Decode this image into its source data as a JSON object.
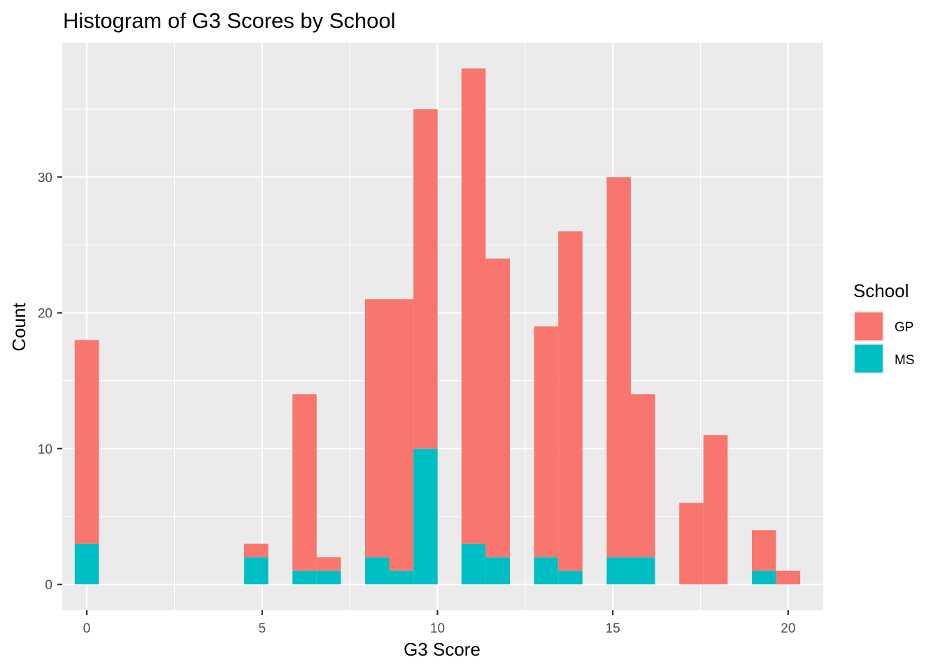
{
  "chart_data": {
    "type": "bar",
    "subtype": "stacked-histogram",
    "title": "Histogram of G3 Scores by School",
    "xlabel": "G3 Score",
    "ylabel": "Count",
    "xlim": [
      -0.7,
      21.0
    ],
    "ylim": [
      -1.9,
      39.9
    ],
    "bin_width": 0.6897,
    "x_ticks": [
      0,
      5,
      10,
      15,
      20
    ],
    "y_ticks": [
      0,
      10,
      20,
      30
    ],
    "x_tick_labels": [
      "0",
      "5",
      "10",
      "15",
      "20"
    ],
    "y_tick_labels": [
      "0",
      "10",
      "20",
      "30"
    ],
    "grid": true,
    "legend": {
      "title": "School",
      "position": "right"
    },
    "series": [
      {
        "name": "MS",
        "color": "#00BFC4",
        "x": [
          0,
          4.83,
          6.21,
          6.9,
          8.28,
          8.97,
          9.66,
          11.03,
          11.72,
          13.1,
          13.79,
          15.17,
          15.86,
          17.24,
          17.93,
          19.31,
          20.0
        ],
        "values": [
          3,
          2,
          1,
          1,
          2,
          1,
          10,
          3,
          2,
          2,
          1,
          2,
          2,
          0,
          0,
          1,
          0
        ]
      },
      {
        "name": "GP",
        "color": "#F8766D",
        "x": [
          0,
          4.83,
          6.21,
          6.9,
          8.28,
          8.97,
          9.66,
          11.03,
          11.72,
          13.1,
          13.79,
          15.17,
          15.86,
          17.24,
          17.93,
          19.31,
          20.0
        ],
        "values": [
          15,
          1,
          13,
          1,
          19,
          20,
          25,
          35,
          22,
          17,
          25,
          28,
          12,
          6,
          11,
          3,
          1
        ]
      }
    ]
  }
}
